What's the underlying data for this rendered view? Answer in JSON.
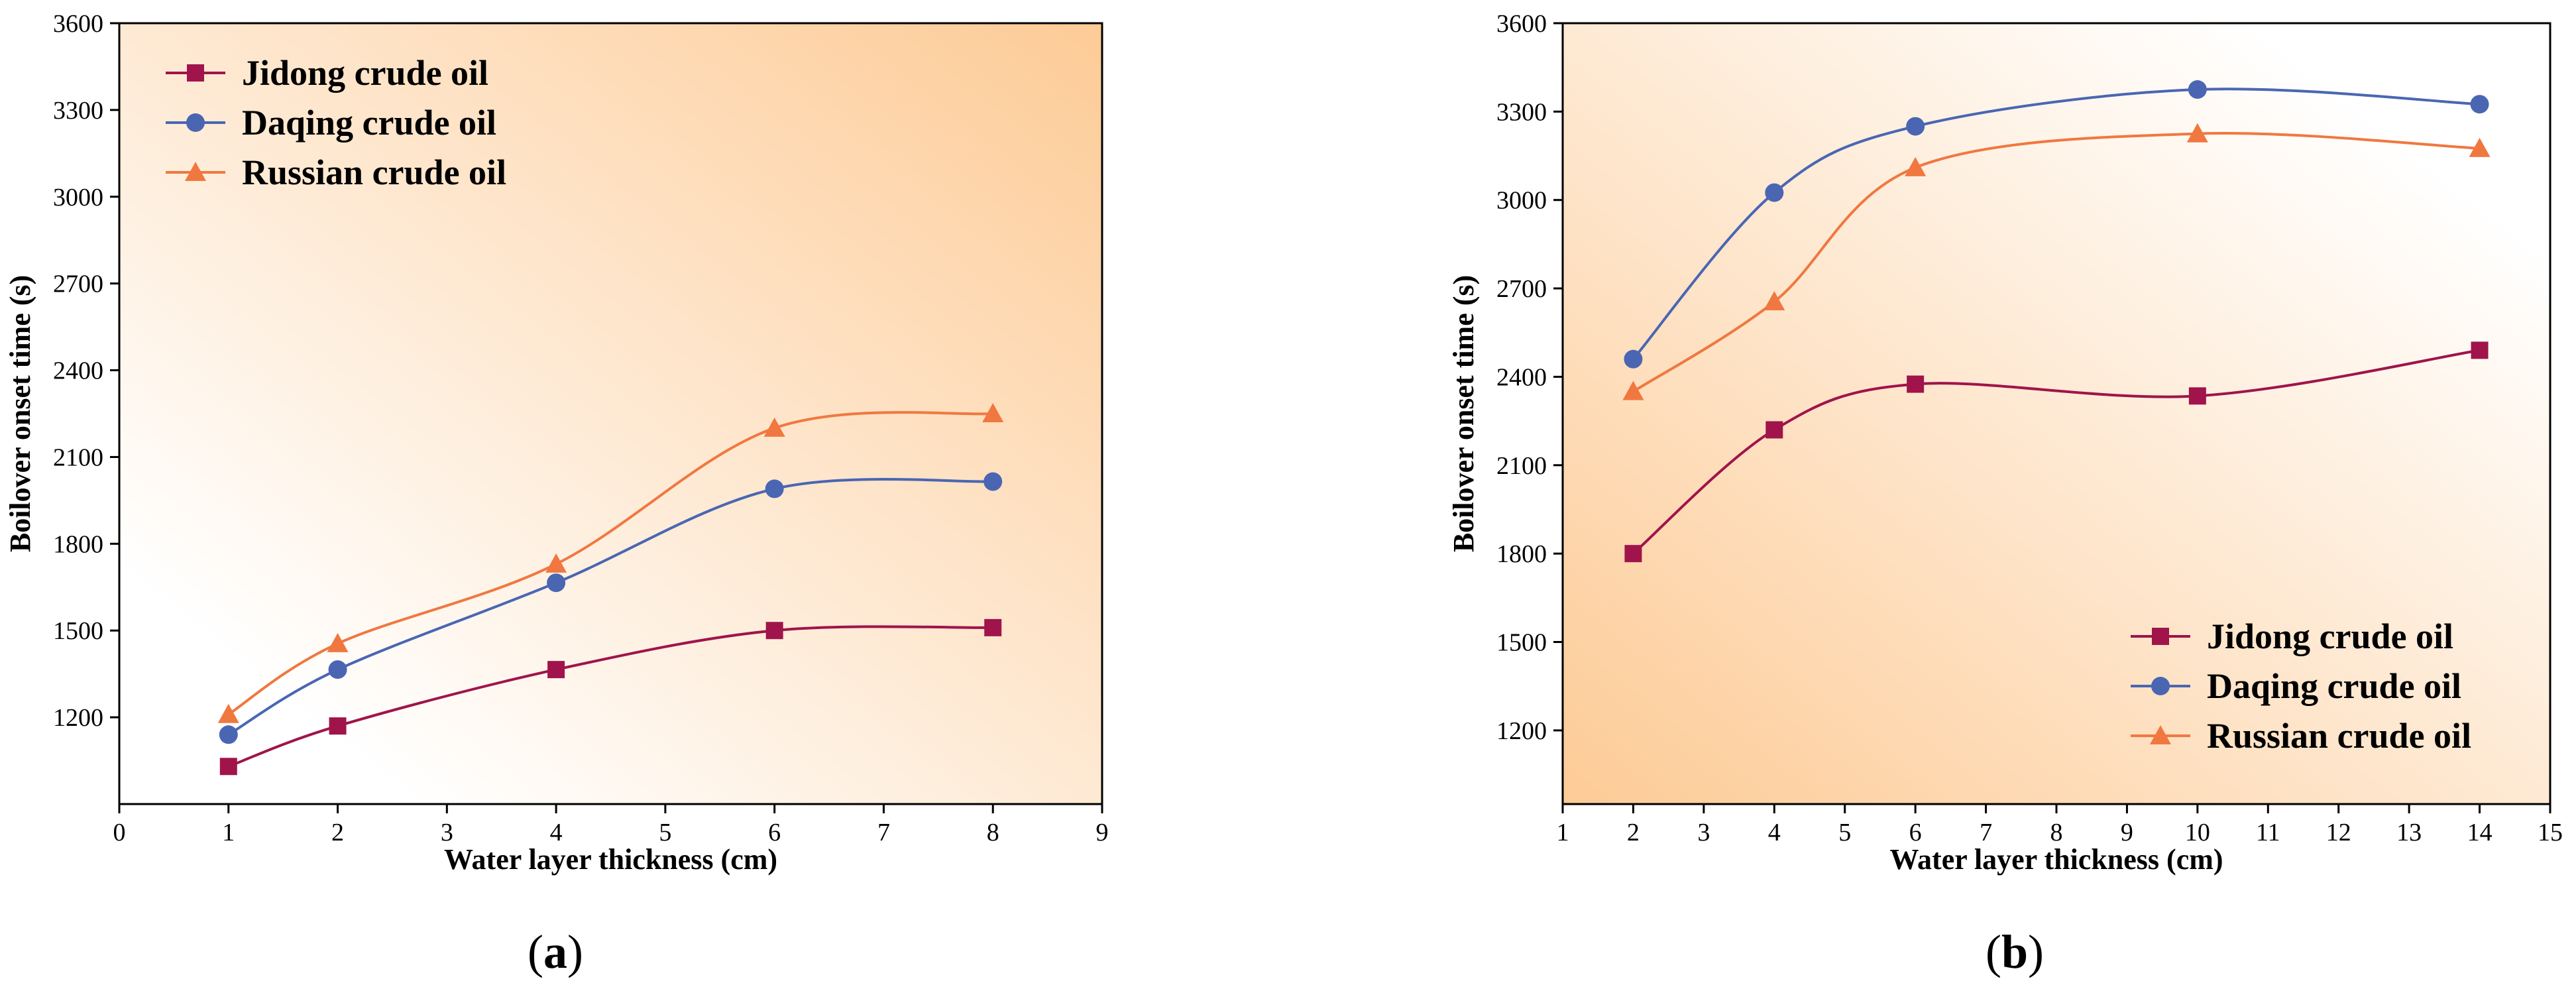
{
  "colors": {
    "series": [
      "#A0144B",
      "#4A66B3",
      "#F07840"
    ],
    "gradient_start": "#FFFFFF",
    "gradient_end": "#FDCB96"
  },
  "chart_data": [
    {
      "panel_label_prefix": "(",
      "panel_label_letter": "a",
      "panel_label_suffix": ")",
      "type": "line",
      "xlabel": "Water layer thickness (cm)",
      "ylabel": "Boilover onset time (s)",
      "xlim": [
        0,
        9
      ],
      "ylim": [
        900,
        3600
      ],
      "xticks": [
        "0",
        "1",
        "2",
        "3",
        "4",
        "5",
        "6",
        "7",
        "8",
        "9"
      ],
      "yticks": [
        "1200",
        "1500",
        "1800",
        "2100",
        "2400",
        "2700",
        "3000",
        "3300",
        "3600"
      ],
      "legend_position": "top-left",
      "gradient_direction": "to-top-right",
      "series": [
        {
          "name": "Jidong crude oil",
          "marker": "square",
          "x": [
            1,
            2,
            4,
            6,
            8
          ],
          "y": [
            1030,
            1170,
            1365,
            1500,
            1510
          ]
        },
        {
          "name": "Daqing crude oil",
          "marker": "circle",
          "x": [
            1,
            2,
            4,
            6,
            8
          ],
          "y": [
            1140,
            1365,
            1665,
            1990,
            2015
          ]
        },
        {
          "name": "Russian crude oil",
          "marker": "triangle",
          "x": [
            1,
            2,
            4,
            6,
            8
          ],
          "y": [
            1210,
            1455,
            1730,
            2200,
            2250
          ]
        }
      ]
    },
    {
      "panel_label_prefix": "(",
      "panel_label_letter": "b",
      "panel_label_suffix": ")",
      "type": "line",
      "xlabel": "Water layer thickness (cm)",
      "ylabel": "Boilover onset time (s)",
      "xlim": [
        1,
        15
      ],
      "ylim": [
        950,
        3600
      ],
      "xticks": [
        "1",
        "2",
        "3",
        "4",
        "5",
        "6",
        "7",
        "8",
        "9",
        "10",
        "11",
        "12",
        "13",
        "14",
        "15"
      ],
      "yticks": [
        "1200",
        "1500",
        "1800",
        "2100",
        "2400",
        "2700",
        "3000",
        "3300",
        "3600"
      ],
      "legend_position": "bottom-right",
      "gradient_direction": "to-bottom-left",
      "series": [
        {
          "name": "Jidong crude oil",
          "marker": "square",
          "x": [
            2,
            4,
            6,
            10,
            14
          ],
          "y": [
            1800,
            2220,
            2375,
            2335,
            2490
          ]
        },
        {
          "name": "Daqing crude oil",
          "marker": "circle",
          "x": [
            2,
            4,
            6,
            10,
            14
          ],
          "y": [
            2460,
            3025,
            3250,
            3375,
            3325
          ]
        },
        {
          "name": "Russian crude oil",
          "marker": "triangle",
          "x": [
            2,
            4,
            6,
            10,
            14
          ],
          "y": [
            2350,
            2655,
            3110,
            3225,
            3175
          ]
        }
      ]
    }
  ]
}
